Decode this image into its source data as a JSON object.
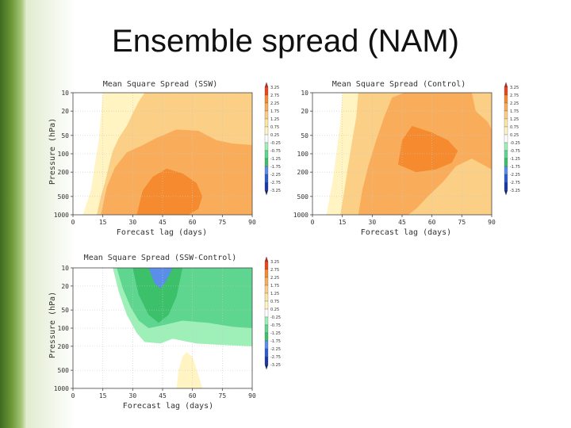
{
  "slide": {
    "title": "Ensemble spread (NAM)"
  },
  "colorbar": {
    "levels": [
      "3.25",
      "2.75",
      "2.25",
      "1.75",
      "1.25",
      "0.75",
      "0.25",
      "-0.25",
      "-0.75",
      "-1.25",
      "-1.75",
      "-2.25",
      "-2.75",
      "-3.25"
    ],
    "colors": [
      "#c8201e",
      "#e8461e",
      "#f58b2e",
      "#f9ad5a",
      "#fbcf86",
      "#fde7a4",
      "#fff4c2",
      "#ffffff",
      "#9ff0b8",
      "#5fd690",
      "#3cc06a",
      "#5a8ee8",
      "#2a5ed0",
      "#1838a8",
      "#0c1f78"
    ]
  },
  "chart_data": [
    {
      "type": "heatmap",
      "title": "Mean Square Spread (SSW)",
      "xlabel": "Forecast lag (days)",
      "ylabel": "Pressure (hPa)",
      "xlim": [
        0,
        90
      ],
      "ylim": [
        1000,
        10
      ],
      "y_scale": "log",
      "xticks": [
        0,
        15,
        30,
        45,
        60,
        75,
        90
      ],
      "yticks": [
        10,
        20,
        50,
        100,
        200,
        500,
        1000
      ],
      "grid": true,
      "colorbar_levels": [
        3.25,
        2.75,
        2.25,
        1.75,
        1.25,
        0.75,
        0.25,
        -0.25,
        -0.75,
        -1.25,
        -1.75,
        -2.25,
        -2.75,
        -3.25
      ],
      "contours": [
        {
          "level": 0.25,
          "polygon": [
            [
              5,
              1000
            ],
            [
              9,
              400
            ],
            [
              11,
              150
            ],
            [
              13,
              60
            ],
            [
              14,
              25
            ],
            [
              15,
              10
            ],
            [
              90,
              10
            ],
            [
              90,
              1000
            ]
          ]
        },
        {
          "level": 1.25,
          "polygon": [
            [
              12,
              1000
            ],
            [
              14,
              500
            ],
            [
              16,
              300
            ],
            [
              18,
              160
            ],
            [
              20,
              90
            ],
            [
              23,
              55
            ],
            [
              27,
              35
            ],
            [
              30,
              22
            ],
            [
              33,
              14
            ],
            [
              36,
              10
            ],
            [
              90,
              10
            ],
            [
              90,
              1000
            ]
          ]
        },
        {
          "level": 1.75,
          "polygon": [
            [
              14,
              1000
            ],
            [
              17,
              350
            ],
            [
              21,
              170
            ],
            [
              27,
              95
            ],
            [
              34,
              75
            ],
            [
              42,
              55
            ],
            [
              52,
              40
            ],
            [
              63,
              42
            ],
            [
              72,
              60
            ],
            [
              80,
              68
            ],
            [
              90,
              72
            ],
            [
              90,
              1000
            ]
          ]
        },
        {
          "level": 2.25,
          "polygon": [
            [
              32,
              1000
            ],
            [
              35,
              400
            ],
            [
              40,
              240
            ],
            [
              47,
              175
            ],
            [
              55,
              210
            ],
            [
              62,
              300
            ],
            [
              65,
              500
            ],
            [
              63,
              800
            ],
            [
              58,
              1000
            ]
          ]
        }
      ]
    },
    {
      "type": "heatmap",
      "title": "Mean Square Spread (Control)",
      "xlabel": "Forecast lag (days)",
      "ylabel": "",
      "xlim": [
        0,
        90
      ],
      "ylim": [
        1000,
        10
      ],
      "y_scale": "log",
      "xticks": [
        0,
        15,
        30,
        45,
        60,
        75,
        90
      ],
      "yticks": [
        10,
        20,
        50,
        100,
        200,
        500,
        1000
      ],
      "grid": true,
      "colorbar_levels": [
        3.25,
        2.75,
        2.25,
        1.75,
        1.25,
        0.75,
        0.25,
        -0.25,
        -0.75,
        -1.25,
        -1.75,
        -2.25,
        -2.75,
        -3.25
      ],
      "contours": [
        {
          "level": 0.25,
          "polygon": [
            [
              7,
              1000
            ],
            [
              10,
              300
            ],
            [
              12,
              100
            ],
            [
              14,
              30
            ],
            [
              15,
              10
            ],
            [
              90,
              10
            ],
            [
              90,
              1000
            ]
          ]
        },
        {
          "level": 1.25,
          "polygon": [
            [
              14,
              1000
            ],
            [
              16,
              400
            ],
            [
              18,
              150
            ],
            [
              20,
              60
            ],
            [
              22,
              25
            ],
            [
              23,
              10
            ],
            [
              90,
              10
            ],
            [
              90,
              1000
            ]
          ]
        },
        {
          "level": 1.75,
          "polygon": [
            [
              23,
              1000
            ],
            [
              25,
              400
            ],
            [
              28,
              160
            ],
            [
              32,
              60
            ],
            [
              36,
              25
            ],
            [
              40,
              12
            ],
            [
              46,
              10
            ],
            [
              80,
              10
            ],
            [
              82,
              20
            ],
            [
              88,
              30
            ],
            [
              90,
              40
            ],
            [
              90,
              180
            ],
            [
              80,
              120
            ],
            [
              72,
              160
            ],
            [
              66,
              280
            ],
            [
              58,
              500
            ],
            [
              52,
              800
            ],
            [
              48,
              1000
            ]
          ]
        },
        {
          "level": 2.25,
          "polygon": [
            [
              43,
              150
            ],
            [
              45,
              60
            ],
            [
              50,
              35
            ],
            [
              60,
              45
            ],
            [
              68,
              60
            ],
            [
              73,
              90
            ],
            [
              70,
              140
            ],
            [
              62,
              180
            ],
            [
              52,
              200
            ]
          ]
        }
      ]
    },
    {
      "type": "heatmap",
      "title": "Mean Square Spread (SSW-Control)",
      "xlabel": "Forecast lag (days)",
      "ylabel": "Pressure (hPa)",
      "xlim": [
        0,
        90
      ],
      "ylim": [
        1000,
        10
      ],
      "y_scale": "log",
      "xticks": [
        0,
        15,
        30,
        45,
        60,
        75,
        90
      ],
      "yticks": [
        10,
        20,
        50,
        100,
        200,
        500,
        1000
      ],
      "grid": true,
      "colorbar_levels": [
        3.25,
        2.75,
        2.25,
        1.75,
        1.25,
        0.75,
        0.25,
        -0.25,
        -0.75,
        -1.25,
        -1.75,
        -2.25,
        -2.75,
        -3.25
      ],
      "contours": [
        {
          "level": -0.25,
          "polygon": [
            [
              20,
              10
            ],
            [
              23,
              25
            ],
            [
              27,
              60
            ],
            [
              32,
              120
            ],
            [
              36,
              170
            ],
            [
              44,
              180
            ],
            [
              50,
              150
            ],
            [
              62,
              180
            ],
            [
              75,
              190
            ],
            [
              90,
              200
            ],
            [
              90,
              10
            ]
          ]
        },
        {
          "level": -0.75,
          "polygon": [
            [
              22,
              10
            ],
            [
              25,
              22
            ],
            [
              29,
              45
            ],
            [
              33,
              75
            ],
            [
              38,
              100
            ],
            [
              45,
              90
            ],
            [
              55,
              75
            ],
            [
              68,
              82
            ],
            [
              80,
              95
            ],
            [
              90,
              100
            ],
            [
              90,
              10
            ]
          ]
        },
        {
          "level": -1.25,
          "polygon": [
            [
              30,
              10
            ],
            [
              33,
              28
            ],
            [
              38,
              60
            ],
            [
              43,
              82
            ],
            [
              48,
              60
            ],
            [
              52,
              30
            ],
            [
              55,
              10
            ]
          ]
        },
        {
          "level": -1.75,
          "polygon": [
            [
              38,
              10
            ],
            [
              41,
              18
            ],
            [
              44,
              22
            ],
            [
              47,
              16
            ],
            [
              50,
              10
            ]
          ]
        },
        {
          "level": 0.25,
          "polygon": [
            [
              52,
              1000
            ],
            [
              53,
              500
            ],
            [
              55,
              300
            ],
            [
              57,
              250
            ],
            [
              60,
              300
            ],
            [
              63,
              600
            ],
            [
              65,
              1000
            ]
          ]
        }
      ]
    }
  ]
}
